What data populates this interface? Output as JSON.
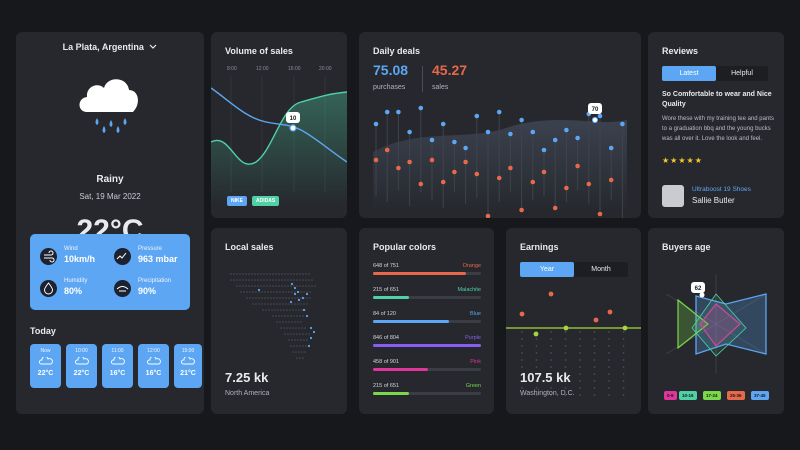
{
  "weather": {
    "location": "La Plata, Argentina",
    "condition": "Rainy",
    "date": "Sat, 19 Mar 2022",
    "temperature": "22°C",
    "stats": [
      {
        "label": "Wind",
        "value": "10km/h",
        "icon": "wind-icon"
      },
      {
        "label": "Pressure",
        "value": "963 mbar",
        "icon": "pressure-icon"
      },
      {
        "label": "Humidity",
        "value": "80%",
        "icon": "humidity-icon"
      },
      {
        "label": "Precipitation",
        "value": "90%",
        "icon": "precipitation-icon"
      }
    ],
    "today_label": "Today",
    "hourly": [
      {
        "time": "Now",
        "temp": "22°C"
      },
      {
        "time": "10:00",
        "temp": "22°C"
      },
      {
        "time": "11:00",
        "temp": "16°C"
      },
      {
        "time": "12:00",
        "temp": "16°C"
      },
      {
        "time": "15:00",
        "temp": "21°C"
      }
    ]
  },
  "volume": {
    "title": "Volume of sales",
    "times": [
      "8:00",
      "12:00",
      "16:00",
      "20:00"
    ],
    "tooltip": "10",
    "tags": [
      "NIKE",
      "ADIDAS"
    ]
  },
  "deals": {
    "title": "Daily deals",
    "purchases_value": "75.08",
    "purchases_label": "purchases",
    "sales_value": "45.27",
    "sales_label": "sales",
    "tooltip": "70"
  },
  "reviews": {
    "title": "Reviews",
    "tabs": [
      "Latest",
      "Helpful"
    ],
    "headline": "So Comfortable to wear and Nice Quality",
    "body": "Wore these with my training tee and pants to a graduation bbq and the young bucks was all over it. Love the look and feel.",
    "stars": "★★★★★",
    "product": "Ultraboost 19 Shoes",
    "buyer": "Sallie Butler"
  },
  "local": {
    "title": "Local sales",
    "value": "7.25 kk",
    "region": "North America"
  },
  "popular": {
    "title": "Popular colors",
    "rows": [
      {
        "label": "648 of 751",
        "name": "Orange",
        "fraction": 0.86,
        "color": "#e8684a"
      },
      {
        "label": "215 of 651",
        "name": "Malachite",
        "fraction": 0.33,
        "color": "#4fd1a5"
      },
      {
        "label": "84 of 120",
        "name": "Blue",
        "fraction": 0.7,
        "color": "#5da6f3"
      },
      {
        "label": "846 of 804",
        "name": "Purple",
        "fraction": 1.0,
        "color": "#8a5cf6"
      },
      {
        "label": "458 of 901",
        "name": "Pink",
        "fraction": 0.51,
        "color": "#e0359a"
      },
      {
        "label": "215 of 651",
        "name": "Green",
        "fraction": 0.33,
        "color": "#7bd84a"
      }
    ]
  },
  "earnings": {
    "title": "Earnings",
    "tabs": [
      "Year",
      "Month"
    ],
    "value": "107.5 kk",
    "location": "Washington, D.C."
  },
  "buyers": {
    "title": "Buyers age",
    "tooltip": "62",
    "ages": [
      {
        "label": "0-9",
        "color": "#e0359a"
      },
      {
        "label": "10-16",
        "color": "#4fd1a5"
      },
      {
        "label": "17-24",
        "color": "#7bd84a"
      },
      {
        "label": "25-36",
        "color": "#e8684a"
      },
      {
        "label": "37-45",
        "color": "#5da6f3"
      }
    ]
  }
}
